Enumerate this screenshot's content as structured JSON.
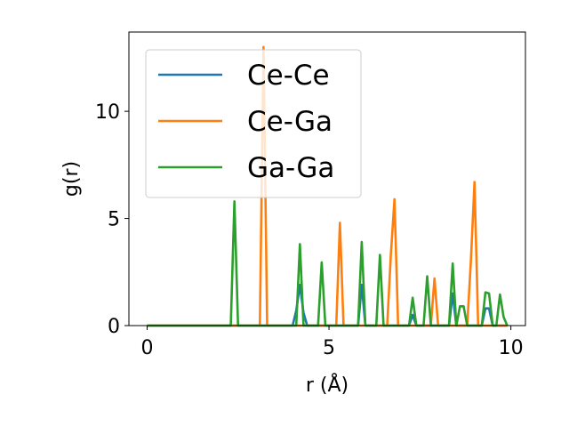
{
  "chart_data": {
    "type": "line",
    "xlabel": "r (Å)",
    "ylabel": "g(r)",
    "xlim": [
      -0.5,
      10.4
    ],
    "ylim": [
      0,
      13.7
    ],
    "xticks": [
      0,
      5,
      10
    ],
    "yticks": [
      0,
      5,
      10
    ],
    "grid": false,
    "legend": "upper left",
    "series": [
      {
        "name": "Ce-Ce",
        "color": "#1f77b4",
        "x": [
          0,
          4.0,
          4.1,
          4.2,
          4.3,
          4.4,
          5.8,
          5.9,
          6.0,
          7.2,
          7.3,
          7.4,
          8.3,
          8.4,
          8.5,
          9.2,
          9.3,
          9.4,
          9.5,
          9.9
        ],
        "y": [
          0,
          0,
          0.7,
          1.9,
          0.6,
          0,
          0,
          1.9,
          0,
          0,
          0.5,
          0,
          0,
          1.5,
          0,
          0,
          0.8,
          0.8,
          0,
          0
        ]
      },
      {
        "name": "Ce-Ga",
        "color": "#ff7f0e",
        "x": [
          0,
          3.1,
          3.2,
          3.3,
          5.2,
          5.3,
          5.4,
          6.6,
          6.7,
          6.8,
          6.9,
          7.8,
          7.9,
          8.0,
          8.8,
          8.9,
          9.0,
          9.1,
          9.9
        ],
        "y": [
          0,
          0,
          13.0,
          0,
          0,
          4.8,
          0,
          0,
          3.3,
          5.9,
          0,
          0,
          2.2,
          0,
          0,
          3.0,
          6.7,
          0,
          0
        ]
      },
      {
        "name": "Ga-Ga",
        "color": "#2ca02c",
        "x": [
          0,
          2.3,
          2.4,
          2.5,
          4.1,
          4.2,
          4.3,
          4.7,
          4.8,
          4.9,
          5.8,
          5.9,
          6.0,
          6.3,
          6.4,
          6.5,
          7.2,
          7.3,
          7.4,
          7.6,
          7.7,
          7.8,
          8.3,
          8.4,
          8.5,
          8.6,
          8.7,
          8.8,
          8.9,
          9.2,
          9.3,
          9.4,
          9.5,
          9.6,
          9.7,
          9.8,
          9.9
        ],
        "y": [
          0,
          0,
          5.8,
          0,
          0,
          3.8,
          0,
          0,
          2.95,
          0,
          0,
          3.9,
          0,
          0,
          3.3,
          0,
          0,
          1.3,
          0,
          0,
          2.3,
          0,
          0,
          2.9,
          0,
          0.9,
          0.9,
          0,
          0,
          0,
          1.55,
          1.5,
          0,
          0,
          1.45,
          0.4,
          0
        ]
      }
    ]
  }
}
